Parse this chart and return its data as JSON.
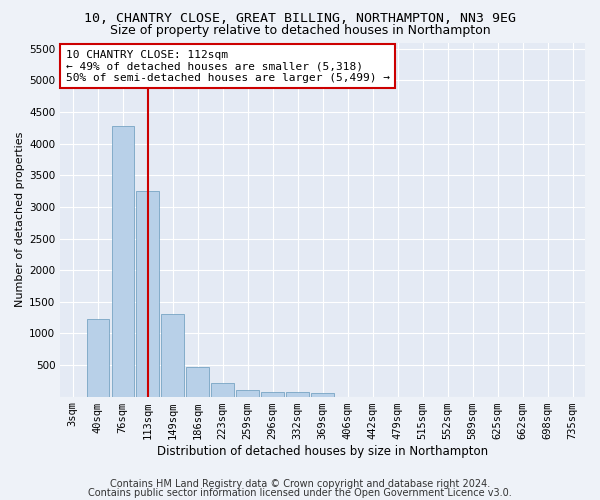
{
  "title1": "10, CHANTRY CLOSE, GREAT BILLING, NORTHAMPTON, NN3 9EG",
  "title2": "Size of property relative to detached houses in Northampton",
  "xlabel": "Distribution of detached houses by size in Northampton",
  "ylabel": "Number of detached properties",
  "categories": [
    "3sqm",
    "40sqm",
    "76sqm",
    "113sqm",
    "149sqm",
    "186sqm",
    "223sqm",
    "259sqm",
    "296sqm",
    "332sqm",
    "369sqm",
    "406sqm",
    "442sqm",
    "479sqm",
    "515sqm",
    "552sqm",
    "589sqm",
    "625sqm",
    "662sqm",
    "698sqm",
    "735sqm"
  ],
  "values": [
    0,
    1230,
    4280,
    3250,
    1300,
    460,
    210,
    110,
    80,
    65,
    55,
    0,
    0,
    0,
    0,
    0,
    0,
    0,
    0,
    0,
    0
  ],
  "bar_color": "#b8d0e8",
  "bar_edge_color": "#6699bb",
  "vline_color": "#cc0000",
  "annotation_text": "10 CHANTRY CLOSE: 112sqm\n← 49% of detached houses are smaller (5,318)\n50% of semi-detached houses are larger (5,499) →",
  "annotation_box_facecolor": "#ffffff",
  "annotation_box_edgecolor": "#cc0000",
  "ylim": [
    0,
    5600
  ],
  "yticks": [
    0,
    500,
    1000,
    1500,
    2000,
    2500,
    3000,
    3500,
    4000,
    4500,
    5000,
    5500
  ],
  "footer1": "Contains HM Land Registry data © Crown copyright and database right 2024.",
  "footer2": "Contains public sector information licensed under the Open Government Licence v3.0.",
  "background_color": "#eef2f8",
  "plot_bg_color": "#e4eaf4",
  "title1_fontsize": 9.5,
  "title2_fontsize": 9,
  "xlabel_fontsize": 8.5,
  "ylabel_fontsize": 8,
  "tick_fontsize": 7.5,
  "footer_fontsize": 7,
  "annot_fontsize": 8
}
